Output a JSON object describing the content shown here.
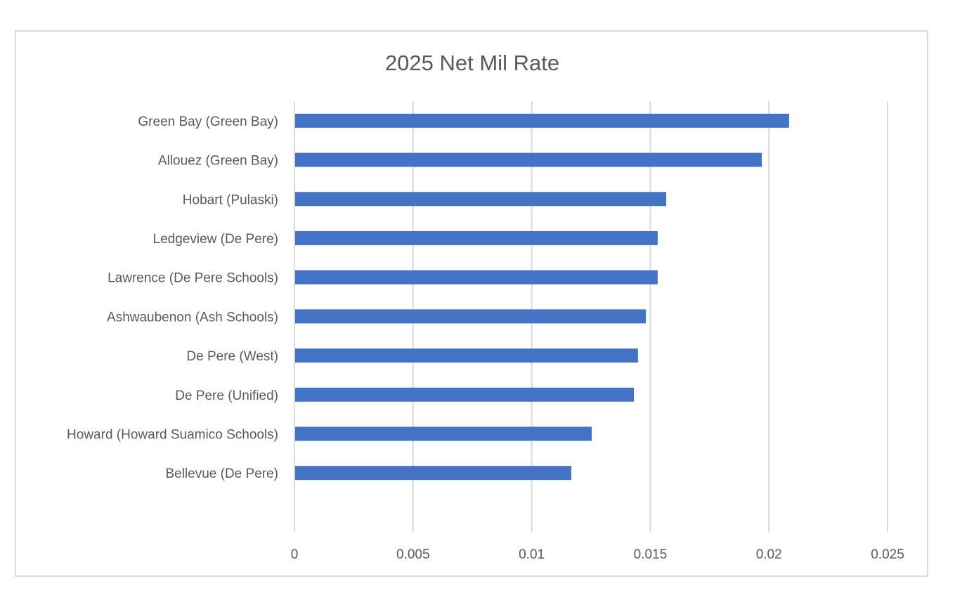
{
  "chart_data": {
    "type": "bar",
    "orientation": "horizontal",
    "title": "2025 Net Mil Rate",
    "xlabel": "",
    "ylabel": "",
    "categories": [
      "Green Bay (Green Bay)",
      "Allouez (Green Bay)",
      "Hobart (Pulaski)",
      "Ledgeview (De Pere)",
      "Lawrence (De Pere Schools)",
      "Ashwaubenon (Ash Schools)",
      "De Pere (West)",
      "De Pere (Unified)",
      "Howard (Howard Suamico Schools)",
      "Bellevue (De Pere)"
    ],
    "values": [
      0.02085,
      0.0197,
      0.01567,
      0.01531,
      0.01531,
      0.01481,
      0.01448,
      0.01431,
      0.01253,
      0.01167
    ],
    "xlim": [
      0,
      0.025
    ],
    "xticks": [
      "0",
      "0.005",
      "0.01",
      "0.015",
      "0.02",
      "0.025"
    ],
    "xtick_values": [
      0,
      0.005,
      0.01,
      0.015,
      0.02,
      0.025
    ],
    "grid": "vertical",
    "legend": "none",
    "colors": {
      "bar": "#4472c4",
      "grid": "#d9d9d9",
      "text": "#595959"
    }
  }
}
